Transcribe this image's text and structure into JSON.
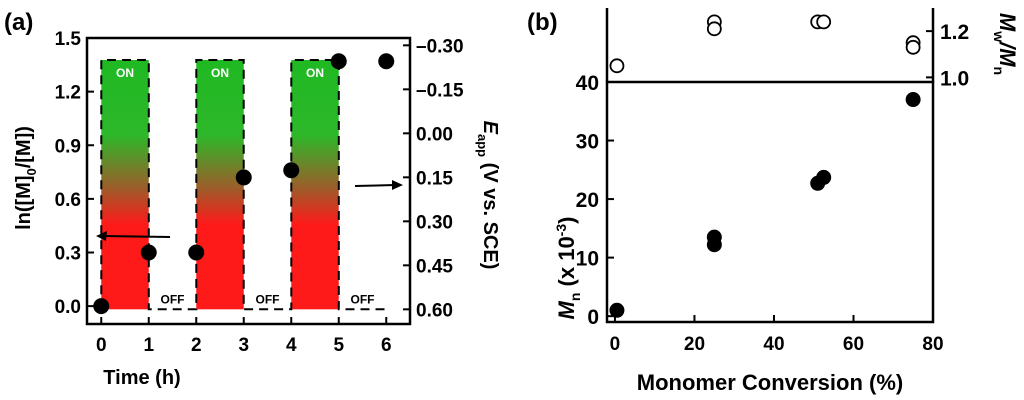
{
  "chart_data": [
    {
      "panel": "(a)",
      "type": "scatter",
      "xlabel": "Time (h)",
      "ylabel": "ln([M]0/[M])",
      "ylabel_parts": [
        "ln([M]",
        "0",
        "/[M])"
      ],
      "y2label_parts": [
        "E",
        "app",
        " (V vs. SCE)"
      ],
      "xlim": [
        -0.3,
        6.5
      ],
      "ylim": [
        -0.1,
        1.5
      ],
      "y2lim": [
        0.65,
        -0.325
      ],
      "xticks": [
        0,
        1,
        2,
        3,
        4,
        5,
        6
      ],
      "yticks": [
        0.0,
        0.3,
        0.6,
        0.9,
        1.2,
        1.5
      ],
      "ytick_labels": [
        "0.0",
        "0.3",
        "0.6",
        "0.9",
        "1.2",
        "1.5"
      ],
      "y2ticks": [
        -0.3,
        -0.15,
        0.0,
        0.15,
        0.3,
        0.45,
        0.6
      ],
      "y2tick_labels": [
        "-0.30",
        "-0.15",
        "0.00",
        "0.15",
        "0.30",
        "0.45",
        "0.60"
      ],
      "points": [
        {
          "x": 0,
          "y": 0.0
        },
        {
          "x": 1,
          "y": 0.3
        },
        {
          "x": 2,
          "y": 0.3
        },
        {
          "x": 3,
          "y": 0.72
        },
        {
          "x": 4,
          "y": 0.76
        },
        {
          "x": 5,
          "y": 1.37
        },
        {
          "x": 6,
          "y": 1.37
        }
      ],
      "potential_profile": [
        {
          "x": 0.0,
          "e": 0.6
        },
        {
          "x": 0.0,
          "e": -0.25
        },
        {
          "x": 1.0,
          "e": -0.25
        },
        {
          "x": 1.0,
          "e": 0.6
        },
        {
          "x": 2.0,
          "e": 0.6
        },
        {
          "x": 2.0,
          "e": -0.25
        },
        {
          "x": 3.0,
          "e": -0.25
        },
        {
          "x": 3.0,
          "e": 0.6
        },
        {
          "x": 4.0,
          "e": 0.6
        },
        {
          "x": 4.0,
          "e": -0.25
        },
        {
          "x": 5.0,
          "e": -0.25
        },
        {
          "x": 5.0,
          "e": 0.6
        },
        {
          "x": 6.0,
          "e": 0.6
        }
      ],
      "on_periods": [
        [
          0,
          1
        ],
        [
          2,
          3
        ],
        [
          4,
          5
        ]
      ],
      "on_label": "ON",
      "off_label": "OFF",
      "off_positions": [
        1.5,
        3.5,
        5.5
      ],
      "colors": {
        "green": "#1fb922",
        "red": "#ff1a1a",
        "marker": "#000000"
      }
    },
    {
      "panel": "(b)",
      "type": "scatter",
      "xlabel": "Monomer Conversion (%)",
      "ylabel_parts": [
        "M",
        "n",
        " (x 10",
        "-3",
        ")"
      ],
      "y2label_parts": [
        "M",
        "w",
        "/M",
        "n"
      ],
      "xlim": [
        -2,
        80
      ],
      "xticks": [
        0,
        20,
        40,
        60,
        80
      ],
      "bottom": {
        "ylim": [
          -1,
          40
        ],
        "yticks": [
          0,
          10,
          20,
          30,
          40
        ],
        "points": [
          {
            "x": 0.5,
            "y": 1.0
          },
          {
            "x": 25,
            "y": 13.5
          },
          {
            "x": 25,
            "y": 12.2
          },
          {
            "x": 51,
            "y": 22.7
          },
          {
            "x": 52.5,
            "y": 23.7
          },
          {
            "x": 75,
            "y": 37.0
          }
        ]
      },
      "top": {
        "ylim": [
          0.98,
          1.3
        ],
        "yticks": [
          1.0,
          1.2
        ],
        "ytick_labels": [
          "1.0",
          "1.2"
        ],
        "points": [
          {
            "x": 0.5,
            "y": 1.05
          },
          {
            "x": 25,
            "y": 1.24
          },
          {
            "x": 25,
            "y": 1.21
          },
          {
            "x": 51,
            "y": 1.24
          },
          {
            "x": 52.5,
            "y": 1.24
          },
          {
            "x": 75,
            "y": 1.15
          },
          {
            "x": 75,
            "y": 1.13
          }
        ]
      }
    }
  ]
}
